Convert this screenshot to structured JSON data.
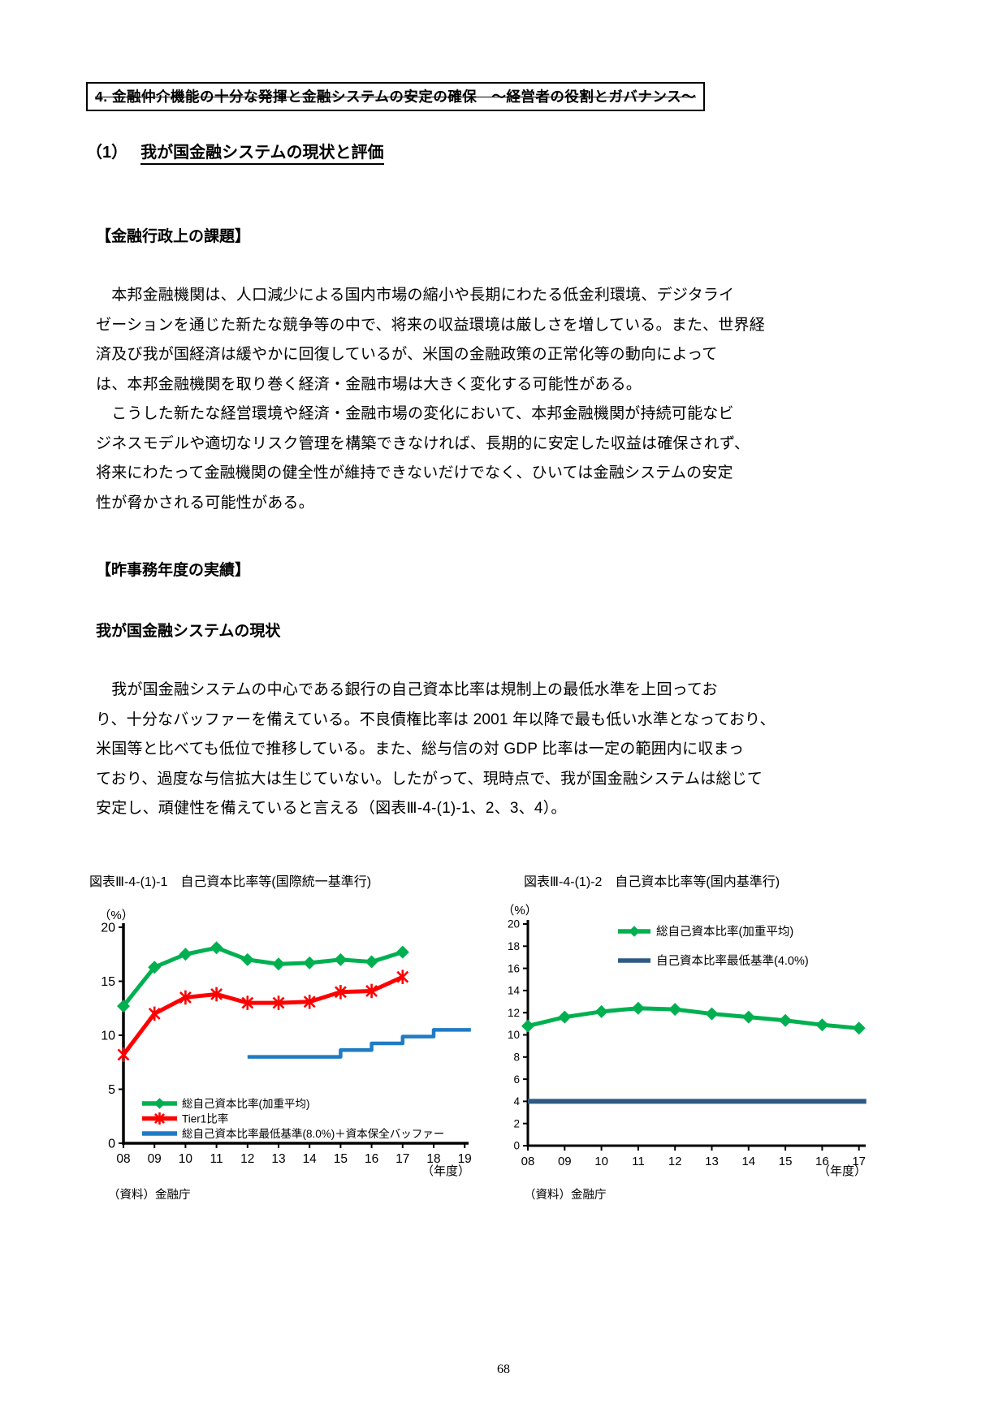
{
  "document": {
    "box_title": "4. 金融仲介機能の十分な発揮と金融システムの安定の確保　～経営者の役割とガバナンス～",
    "section_number": "（1）",
    "section_title": "我が国金融システムの現状と評価",
    "heading_challenges": "【金融行政上の課題】",
    "paragraph1_lines": [
      "　本邦金融機関は、人口減少による国内市場の縮小や長期にわたる低金利環境、デジタライ",
      "ゼーションを通じた新たな競争等の中で、将来の収益環境は厳しさを増している。また、世界経",
      "済及び我が国経済は緩やかに回復しているが、米国の金融政策の正常化等の動向によって",
      "は、本邦金融機関を取り巻く経済・金融市場は大きく変化する可能性がある。"
    ],
    "paragraph2_lines": [
      "　こうした新たな経営環境や経済・金融市場の変化において、本邦金融機関が持続可能なビ",
      "ジネスモデルや適切なリスク管理を構築できなければ、長期的に安定した収益は確保されず、",
      "将来にわたって金融機関の健全性が維持できないだけでなく、ひいては金融システムの安定",
      "性が脅かされる可能性がある。"
    ],
    "heading_results": "【昨事務年度の実績】",
    "subheading_system_status": "我が国金融システムの現状",
    "paragraph3_lines": [
      "　我が国金融システムの中心である銀行の自己資本比率は規制上の最低水準を上回ってお",
      "り、十分なバッファーを備えている。不良債権比率は 2001 年以降で最も低い水準となっており、",
      "米国等と比べても低位で推移している。また、総与信の対 GDP 比率は一定の範囲内に収まっ",
      "ており、過度な与信拡大は生じていない。したがって、現時点で、我が国金融システムは総じて",
      "安定し、頑健性を備えていると言える（図表Ⅲ-4-(1)-1、2、3、4）。"
    ],
    "figure1_title": "図表Ⅲ-4-(1)-1　自己資本比率等(国際統一基準行)",
    "figure2_title": "図表Ⅲ-4-(1)-2　自己資本比率等(国内基準行)",
    "page_number": "68"
  },
  "chart_data": [
    {
      "type": "line",
      "figure_label": "図表Ⅲ-4-(1)-1",
      "title": "自己資本比率等(国際統一基準行)",
      "unit_label": "（%）",
      "xlabel": "（年度）",
      "x_tick_labels": [
        "08",
        "09",
        "10",
        "11",
        "12",
        "13",
        "14",
        "15",
        "16",
        "17",
        "18",
        "19"
      ],
      "x_tick_values": [
        8,
        9,
        10,
        11,
        12,
        13,
        14,
        15,
        16,
        17,
        18,
        19
      ],
      "xlim": [
        8,
        19.3
      ],
      "ylim": [
        0,
        20
      ],
      "y_ticks": [
        0,
        5,
        10,
        15,
        20
      ],
      "grid": false,
      "legend_position": "inside bottom-left",
      "series": [
        {
          "name": "総自己資本比率(加重平均)",
          "color": "#00B050",
          "marker": "diamond",
          "x": [
            8,
            9,
            10,
            11,
            12,
            13,
            14,
            15,
            16,
            17
          ],
          "values": [
            12.7,
            16.3,
            17.5,
            18.1,
            17.0,
            16.6,
            16.7,
            17.0,
            16.8,
            17.7
          ]
        },
        {
          "name": "Tier1比率",
          "color": "#FF0000",
          "marker": "asterisk",
          "x": [
            8,
            9,
            10,
            11,
            12,
            13,
            14,
            15,
            16,
            17
          ],
          "values": [
            8.2,
            12.0,
            13.5,
            13.8,
            13.0,
            13.0,
            13.1,
            14.0,
            14.1,
            15.4
          ]
        },
        {
          "name": "総自己資本比率最低基準(8.0%)＋資本保全バッファー",
          "color": "#1F7BC4",
          "marker": "none",
          "step_points": [
            [
              12,
              8.0
            ],
            [
              15,
              8.0
            ],
            [
              15,
              8.625
            ],
            [
              16,
              8.625
            ],
            [
              16,
              9.25
            ],
            [
              17,
              9.25
            ],
            [
              17,
              9.875
            ],
            [
              18,
              9.875
            ],
            [
              18,
              10.5
            ],
            [
              19.2,
              10.5
            ]
          ]
        }
      ],
      "source": "（資料）金融庁"
    },
    {
      "type": "line",
      "figure_label": "図表Ⅲ-4-(1)-2",
      "title": "自己資本比率等(国内基準行)",
      "unit_label": "（%）",
      "xlabel": "（年度）",
      "x_tick_labels": [
        "08",
        "09",
        "10",
        "11",
        "12",
        "13",
        "14",
        "15",
        "16",
        "17"
      ],
      "x_tick_values": [
        8,
        9,
        10,
        11,
        12,
        13,
        14,
        15,
        16,
        17
      ],
      "xlim": [
        8,
        17.3
      ],
      "ylim": [
        0,
        20
      ],
      "y_ticks": [
        0,
        2,
        4,
        6,
        8,
        10,
        12,
        14,
        16,
        18,
        20
      ],
      "grid": false,
      "legend_position": "inside top",
      "series": [
        {
          "name": "総自己資本比率(加重平均)",
          "color": "#00B050",
          "marker": "diamond",
          "x": [
            8,
            9,
            10,
            11,
            12,
            13,
            14,
            15,
            16,
            17
          ],
          "values": [
            10.8,
            11.6,
            12.1,
            12.4,
            12.3,
            11.9,
            11.6,
            11.3,
            10.9,
            10.6
          ]
        },
        {
          "name": "自己資本比率最低基準(4.0%)",
          "color": "#2F5B82",
          "marker": "none",
          "step_points": [
            [
              8,
              4.0
            ],
            [
              17.2,
              4.0
            ]
          ]
        }
      ],
      "source": "（資料）金融庁"
    }
  ]
}
